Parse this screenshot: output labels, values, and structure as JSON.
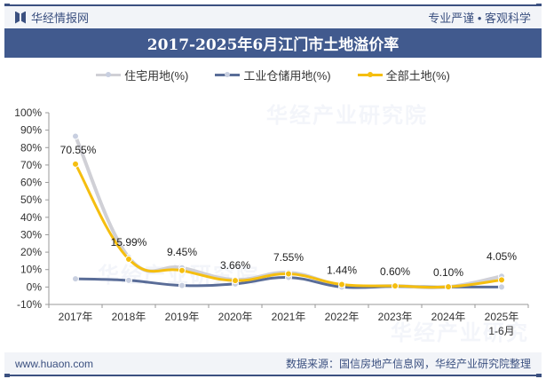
{
  "header": {
    "brand": "华经情报网",
    "slogan": "专业严谨 • 客观科学"
  },
  "title": "2017-2025年6月江门市土地溢价率",
  "legend": [
    {
      "label": "住宅用地(%)",
      "color": "#d0d0d6"
    },
    {
      "label": "工业仓储用地(%)",
      "color": "#5a6d98"
    },
    {
      "label": "全部土地(%)",
      "color": "#f5be0f"
    }
  ],
  "footer": {
    "website": "www.huaon.com",
    "source": "数据来源：国信房地产信息网，华经产业研究院整理"
  },
  "watermarks": [
    "华经产业研究院",
    "华经产业研究院",
    "华经产业研究院",
    "www.huaon.com"
  ],
  "chart_data": {
    "type": "line",
    "title": "2017-2025年6月江门市土地溢价率",
    "categories": [
      "2017年",
      "2018年",
      "2019年",
      "2020年",
      "2021年",
      "2022年",
      "2023年",
      "2024年",
      "2025年\n1-6月"
    ],
    "series": [
      {
        "name": "住宅用地(%)",
        "values": [
          86.5,
          17.0,
          11.0,
          4.2,
          8.3,
          1.0,
          0.6,
          0.1,
          6.2
        ],
        "color": "#d0d0d6"
      },
      {
        "name": "工业仓储用地(%)",
        "values": [
          4.7,
          3.8,
          0.9,
          1.8,
          5.5,
          0.0,
          0.3,
          0.0,
          0.0
        ],
        "color": "#5a6d98"
      },
      {
        "name": "全部土地(%)",
        "values": [
          70.55,
          15.99,
          9.45,
          3.66,
          7.55,
          1.44,
          0.6,
          0.1,
          4.05
        ],
        "color": "#f5be0f"
      }
    ],
    "data_labels": [
      "70.55%",
      "15.99%",
      "9.45%",
      "3.66%",
      "7.55%",
      "1.44%",
      "0.60%",
      "0.10%",
      "4.05%"
    ],
    "yticks": [
      "100%",
      "90%",
      "80%",
      "70%",
      "60%",
      "50%",
      "40%",
      "30%",
      "20%",
      "10%",
      "0%",
      "-10%"
    ],
    "ylim": [
      -10,
      100
    ],
    "xlabel": "",
    "ylabel": "",
    "legend_position": "top",
    "grid": false
  }
}
